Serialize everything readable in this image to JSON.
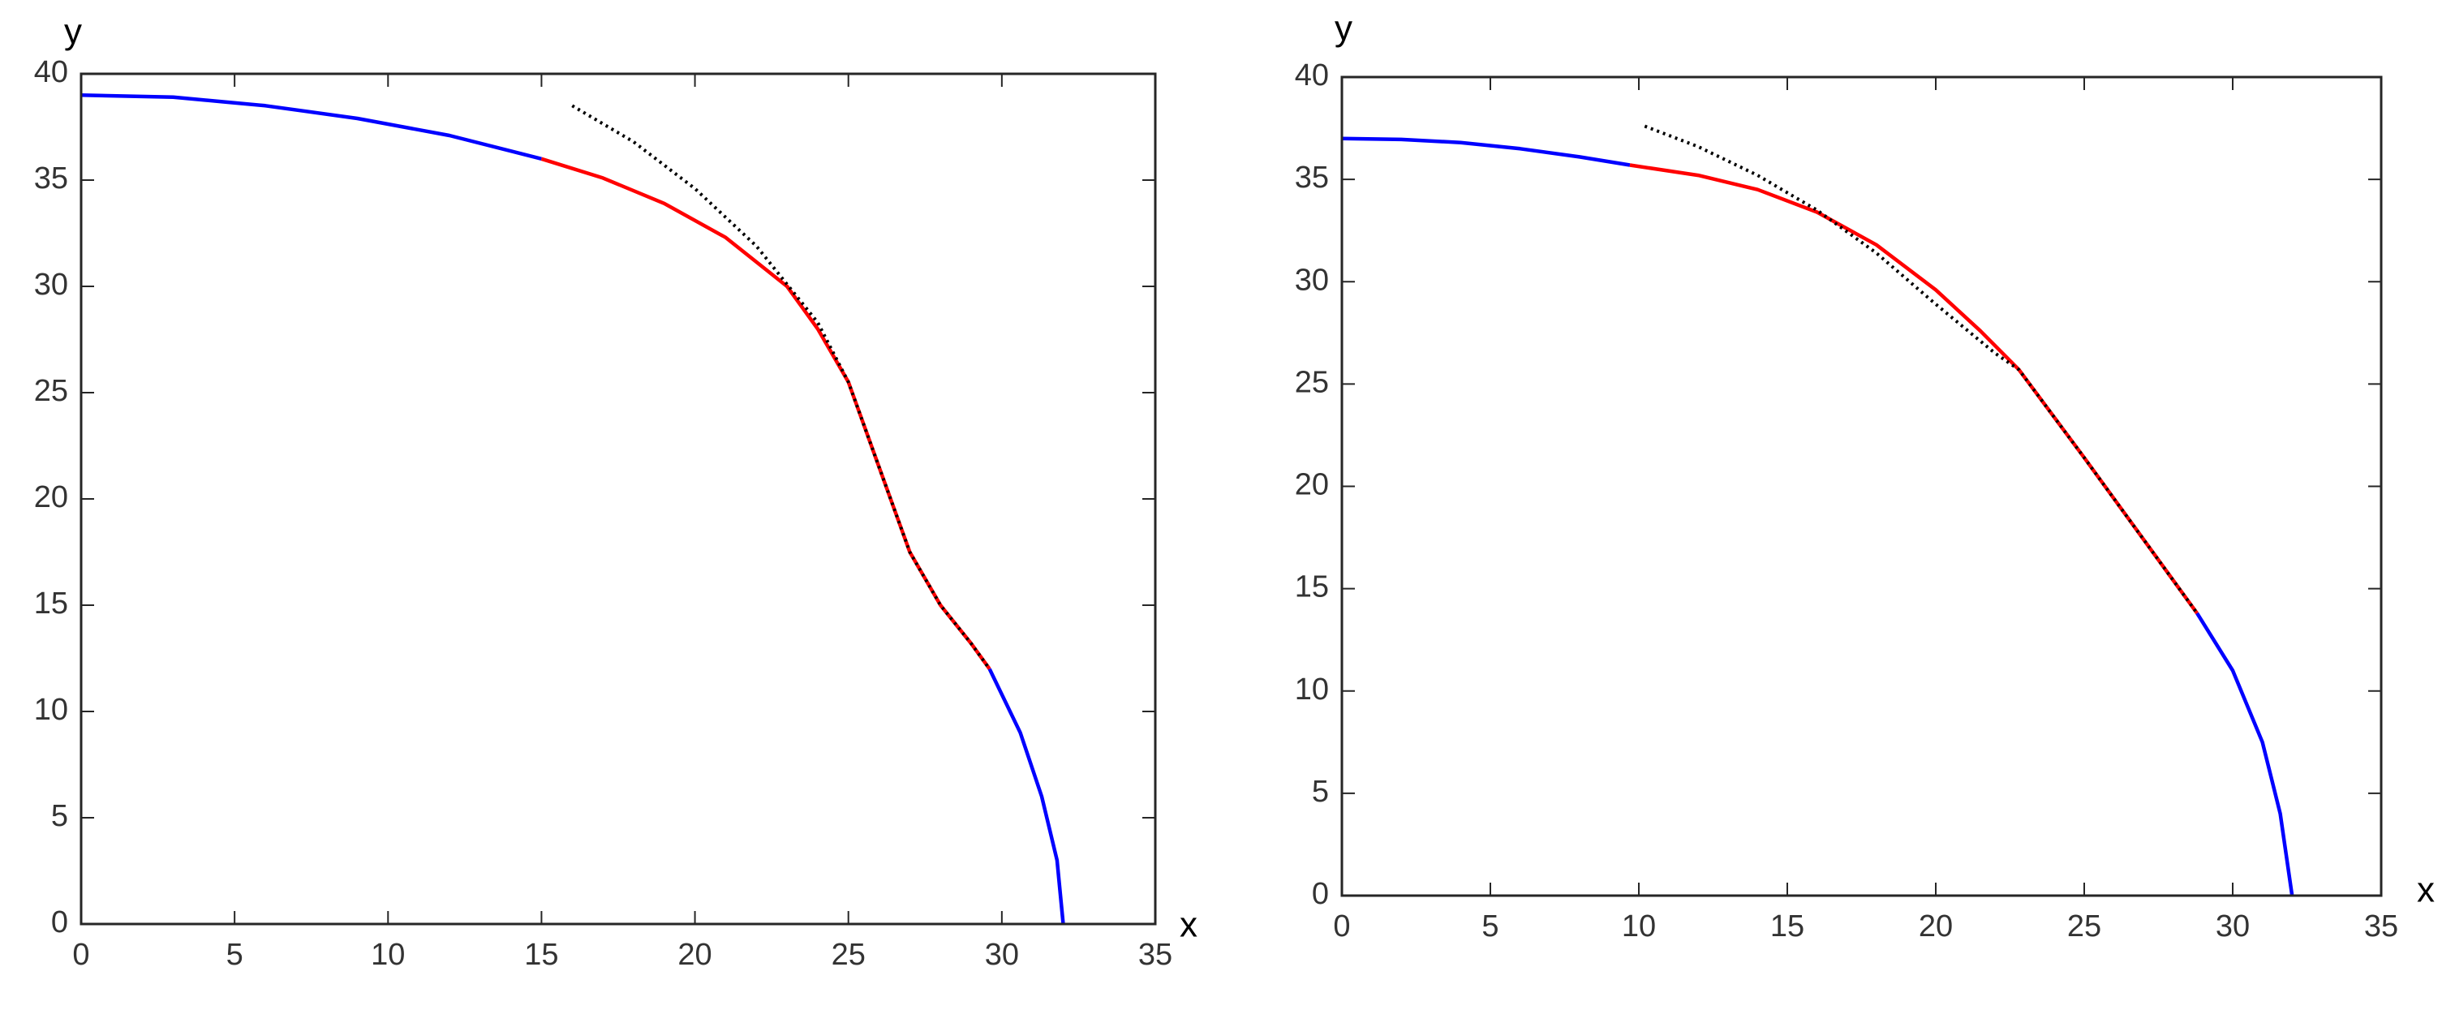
{
  "chart_data": [
    {
      "type": "line",
      "x_label": "x",
      "y_label": "y",
      "xlim": [
        0,
        35
      ],
      "xticks": [
        0,
        5,
        10,
        15,
        20,
        25,
        30,
        35
      ],
      "ylim": [
        0,
        40
      ],
      "yticks": [
        0,
        5,
        10,
        15,
        20,
        25,
        30,
        35,
        40
      ],
      "series": [
        {
          "color": "#0000ff",
          "style": "solid",
          "x": [
            0,
            3,
            6,
            9,
            12,
            15
          ],
          "values": [
            39,
            38.9,
            38.5,
            37.9,
            37.1,
            36
          ]
        },
        {
          "color": "#ff0000",
          "style": "solid",
          "x": [
            15,
            17,
            19,
            21,
            23,
            24,
            25,
            26,
            27,
            28,
            29,
            29.6
          ],
          "values": [
            36,
            35.1,
            33.9,
            32.3,
            30,
            28,
            25.5,
            21.5,
            17.5,
            15,
            13.2,
            12
          ]
        },
        {
          "color": "#000000",
          "style": "dotted",
          "x": [
            16,
            18,
            20,
            22,
            24,
            25,
            26,
            27,
            28,
            29,
            29.6
          ],
          "values": [
            38.5,
            36.8,
            34.6,
            31.9,
            28.3,
            25.5,
            21.5,
            17.5,
            15,
            13.2,
            12
          ]
        },
        {
          "color": "#0000ff",
          "style": "solid",
          "x": [
            29.6,
            30.6,
            31.3,
            31.8,
            32
          ],
          "values": [
            12,
            9,
            6,
            3,
            0
          ]
        }
      ]
    },
    {
      "type": "line",
      "x_label": "x",
      "y_label": "y",
      "xlim": [
        0,
        35
      ],
      "xticks": [
        0,
        5,
        10,
        15,
        20,
        25,
        30,
        35
      ],
      "ylim": [
        0,
        40
      ],
      "yticks": [
        0,
        5,
        10,
        15,
        20,
        25,
        30,
        35,
        40
      ],
      "series": [
        {
          "color": "#0000ff",
          "style": "solid",
          "x": [
            0,
            2,
            4,
            6,
            8,
            9.7
          ],
          "values": [
            37,
            36.95,
            36.8,
            36.5,
            36.1,
            35.7
          ]
        },
        {
          "color": "#ff0000",
          "style": "solid",
          "x": [
            9.7,
            12,
            14,
            16,
            18,
            20,
            21.5,
            22.8,
            25,
            28.8
          ],
          "values": [
            35.7,
            35.2,
            34.5,
            33.4,
            31.8,
            29.6,
            27.6,
            25.7,
            21.4,
            13.8
          ]
        },
        {
          "color": "#000000",
          "style": "dotted",
          "x": [
            10.2,
            12,
            14,
            16,
            18,
            20,
            22,
            22.8,
            25,
            28.8
          ],
          "values": [
            37.6,
            36.6,
            35.2,
            33.5,
            31.4,
            28.9,
            26.5,
            25.7,
            21.4,
            13.8
          ]
        },
        {
          "color": "#0000ff",
          "style": "solid",
          "x": [
            28.8,
            30,
            31,
            31.6,
            32
          ],
          "values": [
            13.8,
            11,
            7.5,
            4,
            0
          ]
        }
      ]
    }
  ]
}
